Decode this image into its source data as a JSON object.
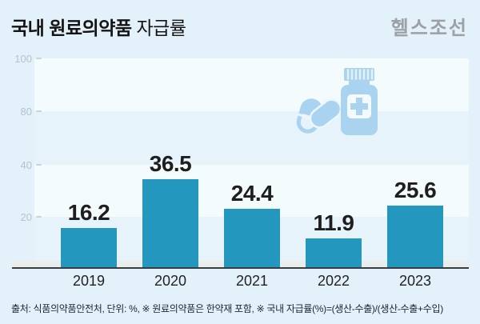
{
  "header": {
    "title_bold": "국내 원료의약품",
    "title_regular": "자급률",
    "logo": "헬스조선"
  },
  "chart_data": {
    "type": "bar",
    "title": "국내 원료의약품 자급률",
    "categories": [
      "2019",
      "2020",
      "2021",
      "2022",
      "2023"
    ],
    "values": [
      16.2,
      36.5,
      24.4,
      11.9,
      25.6
    ],
    "unit": "%",
    "ylim": [
      0,
      100
    ],
    "yticks_top_to_bottom": [
      "100",
      "80",
      "40",
      "20"
    ],
    "grid": "horizontal-bands",
    "legend": "none",
    "bar_color": "#2497be"
  },
  "icons": {
    "pills_bottle": "capsule-pills-and-medicine-bottle-icon",
    "color": "#a9d3ee"
  },
  "footer": {
    "source_note": "출처: 식품의약품안전처, 단위: %, ※ 원료의약품은 한약재 포함, ※ 국내 자급률(%)=(생산-수출)/(생산-수출+수입)"
  },
  "colors": {
    "background": "#e3f1fa",
    "band_light": "#f4fbfd",
    "band_blue": "#e7f3fb",
    "bar": "#2497be",
    "axis_line": "#383e41",
    "tick_text": "#b7c2ca",
    "logo_gray": "#9da0a5"
  }
}
